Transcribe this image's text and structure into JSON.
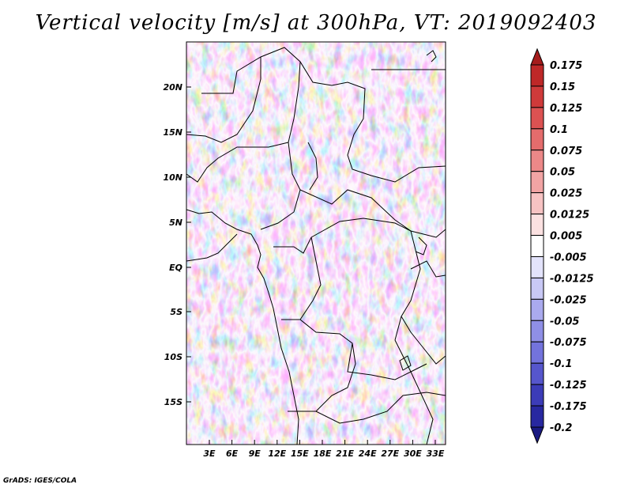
{
  "title": "Vertical velocity [m/s] at 300hPa, VT: 2019092403",
  "credit": "GrADS: IGES/COLA",
  "map": {
    "lat_labels": [
      "20N",
      "15N",
      "10N",
      "5N",
      "EQ",
      "5S",
      "10S",
      "15S"
    ],
    "lon_labels": [
      "3E",
      "6E",
      "9E",
      "12E",
      "15E",
      "18E",
      "21E",
      "24E",
      "27E",
      "30E",
      "33E"
    ],
    "background_pattern": "noisy red-blue vertical velocity field"
  },
  "colorbar": {
    "levels": [
      "0.175",
      "0.15",
      "0.125",
      "0.1",
      "0.075",
      "0.05",
      "0.025",
      "0.0125",
      "0.005",
      "-0.005",
      "-0.0125",
      "-0.025",
      "-0.05",
      "-0.075",
      "-0.1",
      "-0.125",
      "-0.175",
      "-0.2"
    ],
    "colors": [
      "#a51c1c",
      "#be2828",
      "#cf3a3a",
      "#dc5252",
      "#e46c6c",
      "#ec8888",
      "#f2a4a4",
      "#f7c3c3",
      "#fbe1e1",
      "#ffffff",
      "#e3e3fb",
      "#c8c8f5",
      "#aaaaee",
      "#8f8fe6",
      "#7373dc",
      "#5656cc",
      "#3c3cb8",
      "#2828a0",
      "#1a1a82"
    ]
  }
}
